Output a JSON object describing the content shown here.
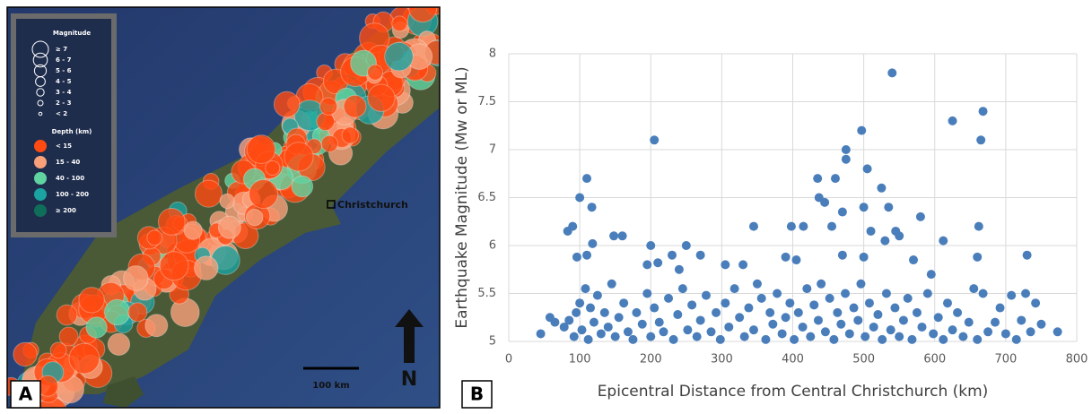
{
  "map": {
    "panel_label": "A",
    "city": "Christchurch",
    "scale_bar": "100 km",
    "north": "N",
    "magnitude_legend": {
      "title": "Magnitude",
      "items": [
        "≥ 7",
        "6 - 7",
        "5 - 6",
        "4 - 5",
        "3 - 4",
        "2 - 3",
        "< 2"
      ]
    },
    "depth_legend": {
      "title": "Depth (km)",
      "items": [
        {
          "label": "< 15",
          "color": "#ff4a12"
        },
        {
          "label": "15 - 40",
          "color": "#f7a07a"
        },
        {
          "label": "40 - 100",
          "color": "#5fd3a0"
        },
        {
          "label": "100 - 200",
          "color": "#1aa3a0"
        },
        {
          "label": "≥ 200",
          "color": "#0f6e5a"
        }
      ]
    }
  },
  "chart_data": {
    "type": "scatter",
    "panel_label": "B",
    "x_label": "Epicentral Distance from Central Christchurch (km)",
    "y_label": "Earthquake Magnitude (Mw or ML)",
    "color": "#4a7ebb",
    "grid": true,
    "xlim": [
      0,
      800
    ],
    "xticks": [
      0,
      100,
      200,
      300,
      400,
      500,
      600,
      700,
      800
    ],
    "ylim": [
      5,
      8
    ],
    "yticks": [
      5,
      5.5,
      6,
      6.5,
      7,
      7.5,
      8
    ],
    "x": [
      205,
      540,
      625,
      668,
      665,
      497,
      475,
      475,
      110,
      100,
      505,
      435,
      525,
      460,
      437,
      445,
      470,
      500,
      535,
      117,
      90,
      345,
      398,
      415,
      455,
      580,
      662,
      83,
      510,
      545,
      550,
      148,
      160,
      118,
      200,
      250,
      612,
      530,
      96,
      110,
      230,
      270,
      195,
      210,
      240,
      305,
      330,
      390,
      405,
      470,
      500,
      595,
      660,
      730,
      570,
      45,
      58,
      65,
      78,
      85,
      92,
      95,
      100,
      103,
      108,
      112,
      115,
      120,
      125,
      130,
      135,
      140,
      145,
      150,
      155,
      162,
      168,
      175,
      180,
      188,
      195,
      200,
      205,
      212,
      218,
      225,
      232,
      238,
      245,
      252,
      258,
      265,
      270,
      278,
      285,
      292,
      298,
      305,
      310,
      318,
      325,
      332,
      338,
      345,
      350,
      356,
      362,
      368,
      372,
      378,
      385,
      390,
      396,
      402,
      408,
      414,
      420,
      425,
      430,
      436,
      440,
      446,
      452,
      458,
      463,
      468,
      474,
      480,
      486,
      492,
      496,
      502,
      508,
      514,
      520,
      526,
      532,
      538,
      544,
      550,
      556,
      562,
      568,
      575,
      582,
      590,
      598,
      605,
      612,
      618,
      625,
      632,
      640,
      648,
      655,
      660,
      668,
      675,
      685,
      692,
      700,
      708,
      715,
      722,
      728,
      735,
      742,
      750,
      773
    ],
    "values": [
      7.1,
      7.8,
      7.3,
      7.4,
      7.1,
      7.2,
      7.0,
      6.9,
      6.7,
      6.5,
      6.8,
      6.7,
      6.6,
      6.7,
      6.5,
      6.45,
      6.35,
      6.4,
      6.4,
      6.4,
      6.2,
      6.2,
      6.2,
      6.2,
      6.2,
      6.3,
      6.2,
      6.15,
      6.15,
      6.15,
      6.1,
      6.1,
      6.1,
      6.02,
      6.0,
      6.0,
      6.05,
      6.05,
      5.88,
      5.9,
      5.9,
      5.9,
      5.8,
      5.82,
      5.75,
      5.8,
      5.8,
      5.88,
      5.85,
      5.9,
      5.88,
      5.7,
      5.88,
      5.9,
      5.85,
      5.08,
      5.25,
      5.2,
      5.15,
      5.22,
      5.05,
      5.3,
      5.4,
      5.12,
      5.55,
      5.02,
      5.35,
      5.2,
      5.48,
      5.08,
      5.3,
      5.15,
      5.6,
      5.05,
      5.25,
      5.4,
      5.1,
      5.02,
      5.3,
      5.18,
      5.5,
      5.05,
      5.35,
      5.2,
      5.1,
      5.45,
      5.02,
      5.28,
      5.55,
      5.12,
      5.38,
      5.05,
      5.22,
      5.48,
      5.1,
      5.3,
      5.02,
      5.4,
      5.15,
      5.55,
      5.25,
      5.05,
      5.35,
      5.12,
      5.6,
      5.45,
      5.02,
      5.3,
      5.18,
      5.5,
      5.08,
      5.25,
      5.4,
      5.02,
      5.3,
      5.15,
      5.55,
      5.05,
      5.38,
      5.22,
      5.6,
      5.1,
      5.45,
      5.02,
      5.3,
      5.18,
      5.5,
      5.08,
      5.35,
      5.22,
      5.6,
      5.05,
      5.4,
      5.15,
      5.28,
      5.02,
      5.5,
      5.12,
      5.35,
      5.05,
      5.22,
      5.45,
      5.02,
      5.3,
      5.15,
      5.5,
      5.08,
      5.25,
      5.02,
      5.4,
      5.12,
      5.3,
      5.05,
      5.2,
      5.55,
      5.02,
      5.5,
      5.1,
      5.2,
      5.35,
      5.08,
      5.48,
      5.02,
      5.22,
      5.5,
      5.1,
      5.4,
      5.18,
      5.1
    ]
  }
}
